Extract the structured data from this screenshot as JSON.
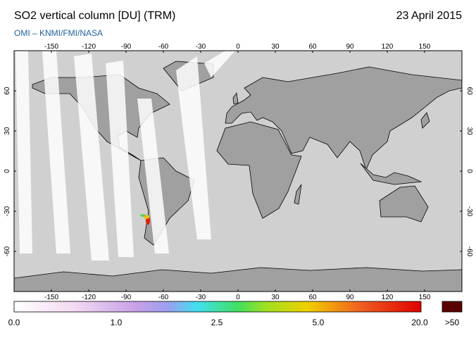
{
  "header": {
    "title": "SO2 vertical column [DU] (TRM)",
    "date": "23 April 2015",
    "source": "OMI – KNMI/FMI/NASA"
  },
  "map": {
    "lon_ticks": [
      -150,
      -120,
      -90,
      -60,
      -30,
      0,
      30,
      60,
      90,
      120,
      150
    ],
    "lat_ticks": [
      60,
      30,
      0,
      -30,
      -60
    ]
  },
  "colorbar": {
    "labels": [
      "0.0",
      "1.0",
      "2.5",
      "5.0",
      "20.0",
      ">50"
    ]
  }
}
